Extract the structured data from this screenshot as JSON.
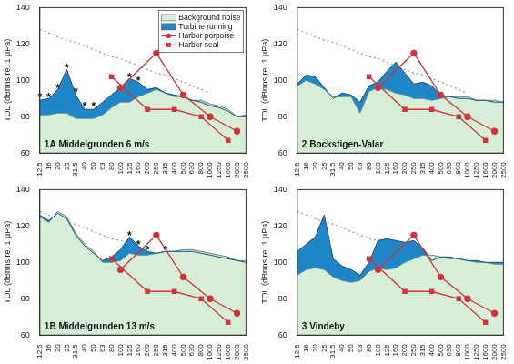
{
  "chart_data": [
    {
      "type": "line",
      "title": "1A Middelgrunden 6 m/s",
      "y_label": "TOL (dBrms re. 1 µPa)",
      "categories": [
        "12.5",
        "16",
        "20",
        "25",
        "31.5",
        "40",
        "50",
        "63",
        "80",
        "100",
        "125",
        "160",
        "200",
        "250",
        "315",
        "400",
        "500",
        "630",
        "800",
        "1000",
        "1250",
        "1600",
        "2000",
        "2500"
      ],
      "ylim": [
        60,
        140
      ],
      "yticks": [
        60,
        80,
        100,
        120,
        140
      ],
      "grid": false,
      "legend": "upper right",
      "series": [
        {
          "name": "Background noise",
          "type": "area",
          "color": "#d7eed6",
          "values": [
            81,
            81,
            82,
            82,
            79,
            79,
            79,
            81,
            85,
            88,
            88,
            91,
            93,
            95,
            93,
            91,
            91,
            89,
            89,
            87,
            86,
            84,
            80,
            81
          ]
        },
        {
          "name": "Turbine running",
          "type": "area",
          "color": "#1f87c8",
          "values": [
            89,
            90,
            95,
            106,
            92,
            84,
            84,
            88,
            92,
            96,
            101,
            99,
            95,
            96,
            93,
            92,
            91,
            89,
            88,
            86,
            85,
            83,
            80,
            80
          ]
        },
        {
          "type": "line",
          "color": "#999999",
          "line_style": "dotted",
          "values": [
            128,
            126,
            124,
            122,
            121,
            119,
            117,
            115,
            113,
            112,
            110,
            108,
            106,
            104,
            103,
            101,
            99,
            97,
            95,
            93,
            null,
            null,
            null,
            null
          ]
        },
        {
          "name": "Harbor porpoise",
          "type": "line",
          "color": "#d2333b",
          "marker": "circle",
          "values": [
            null,
            null,
            null,
            null,
            null,
            null,
            null,
            null,
            null,
            96,
            null,
            null,
            null,
            115,
            null,
            null,
            92,
            null,
            null,
            80,
            null,
            null,
            72,
            null
          ]
        },
        {
          "name": "Harbor seal",
          "type": "line",
          "color": "#d2333b",
          "marker": "square",
          "values": [
            null,
            null,
            null,
            null,
            null,
            null,
            null,
            null,
            102,
            null,
            null,
            null,
            84,
            null,
            null,
            84,
            null,
            null,
            80,
            null,
            null,
            67,
            null,
            null
          ]
        }
      ],
      "annotations": [
        {
          "category": "12.5",
          "y": 92,
          "text": "*"
        },
        {
          "category": "16",
          "y": 92,
          "text": "*"
        },
        {
          "category": "20",
          "y": 97,
          "text": "*"
        },
        {
          "category": "25",
          "y": 108,
          "text": "*"
        },
        {
          "category": "31.5",
          "y": 95,
          "text": "*"
        },
        {
          "category": "40",
          "y": 87,
          "text": "*"
        },
        {
          "category": "50",
          "y": 87,
          "text": "*"
        },
        {
          "category": "125",
          "y": 103,
          "text": "*"
        },
        {
          "category": "160",
          "y": 101,
          "text": "*"
        }
      ]
    },
    {
      "type": "line",
      "title": "2 Bockstigen-Valar",
      "y_label": "TOL (dBrms re. 1 µPa)",
      "categories": [
        "12.5",
        "16",
        "20",
        "25",
        "31.5",
        "40",
        "50",
        "63",
        "80",
        "100",
        "125",
        "160",
        "200",
        "250",
        "315",
        "400",
        "500",
        "630",
        "800",
        "1000",
        "1250",
        "1600",
        "2000",
        "2500"
      ],
      "ylim": [
        60,
        140
      ],
      "yticks": [
        60,
        80,
        100,
        120,
        140
      ],
      "grid": false,
      "legend": false,
      "series": [
        {
          "name": "Background noise",
          "type": "area",
          "color": "#d7eed6",
          "values": [
            97,
            100,
            98,
            95,
            91,
            91,
            91,
            82,
            94,
            96,
            95,
            93,
            92,
            90,
            90,
            89,
            90,
            91,
            91,
            91,
            89,
            89,
            89,
            88
          ]
        },
        {
          "name": "Turbine running",
          "type": "area",
          "color": "#1f87c8",
          "values": [
            98,
            103,
            102,
            96,
            90,
            93,
            92,
            88,
            97,
            99,
            105,
            110,
            104,
            98,
            99,
            97,
            92,
            91,
            90,
            90,
            89,
            89,
            88,
            88
          ]
        },
        {
          "type": "line",
          "color": "#999999",
          "line_style": "dotted",
          "values": [
            128,
            126,
            124,
            122,
            121,
            119,
            117,
            115,
            113,
            112,
            110,
            108,
            106,
            104,
            103,
            101,
            99,
            97,
            95,
            93,
            null,
            null,
            null,
            null
          ]
        },
        {
          "name": "Harbor porpoise",
          "type": "line",
          "color": "#d2333b",
          "marker": "circle",
          "values": [
            null,
            null,
            null,
            null,
            null,
            null,
            null,
            null,
            null,
            96,
            null,
            null,
            null,
            115,
            null,
            null,
            92,
            null,
            null,
            80,
            null,
            null,
            72,
            null
          ]
        },
        {
          "name": "Harbor seal",
          "type": "line",
          "color": "#d2333b",
          "marker": "square",
          "values": [
            null,
            null,
            null,
            null,
            null,
            null,
            null,
            null,
            102,
            null,
            null,
            null,
            84,
            null,
            null,
            84,
            null,
            null,
            80,
            null,
            null,
            67,
            null,
            null
          ]
        }
      ],
      "annotations": []
    },
    {
      "type": "line",
      "title": "1B Middelgrunden 13 m/s",
      "y_label": "TOL (dBrms re. 1 µPa)",
      "categories": [
        "12.5",
        "16",
        "20",
        "25",
        "31.5",
        "40",
        "50",
        "63",
        "80",
        "100",
        "125",
        "160",
        "200",
        "250",
        "315",
        "400",
        "500",
        "630",
        "800",
        "1000",
        "1250",
        "1600",
        "2000",
        "2500"
      ],
      "ylim": [
        60,
        140
      ],
      "yticks": [
        60,
        80,
        100,
        120,
        140
      ],
      "grid": false,
      "legend": false,
      "series": [
        {
          "name": "Background noise",
          "type": "area",
          "color": "#d7eed6",
          "values": [
            125,
            122,
            128,
            125,
            116,
            110,
            106,
            100,
            100,
            101,
            105,
            104,
            104,
            105,
            106,
            106,
            107,
            107,
            106,
            105,
            104,
            103,
            101,
            101
          ]
        },
        {
          "name": "Turbine running",
          "type": "area",
          "color": "#1f87c8",
          "values": [
            126,
            123,
            127,
            124,
            115,
            109,
            105,
            101,
            103,
            107,
            114,
            109,
            106,
            105,
            106,
            106,
            106,
            106,
            105,
            104,
            103,
            102,
            101,
            100
          ]
        },
        {
          "type": "line",
          "color": "#999999",
          "line_style": "dotted",
          "values": [
            128,
            126,
            124,
            122,
            121,
            119,
            117,
            115,
            113,
            112,
            110,
            108,
            106,
            104,
            103,
            101,
            99,
            97,
            95,
            93,
            null,
            null,
            null,
            null
          ]
        },
        {
          "name": "Harbor porpoise",
          "type": "line",
          "color": "#d2333b",
          "marker": "circle",
          "values": [
            null,
            null,
            null,
            null,
            null,
            null,
            null,
            null,
            null,
            96,
            null,
            null,
            null,
            115,
            null,
            null,
            92,
            null,
            null,
            80,
            null,
            null,
            72,
            null
          ]
        },
        {
          "name": "Harbor seal",
          "type": "line",
          "color": "#d2333b",
          "marker": "square",
          "values": [
            null,
            null,
            null,
            null,
            null,
            null,
            null,
            null,
            102,
            null,
            null,
            null,
            84,
            null,
            null,
            84,
            null,
            null,
            80,
            null,
            null,
            67,
            null,
            null
          ]
        }
      ],
      "annotations": [
        {
          "category": "125",
          "y": 116,
          "text": "*"
        },
        {
          "category": "160",
          "y": 111,
          "text": "*"
        },
        {
          "category": "200",
          "y": 108,
          "text": "*"
        },
        {
          "category": "315",
          "y": 108,
          "text": "*"
        }
      ]
    },
    {
      "type": "line",
      "title": "3 Vindeby",
      "y_label": "TOL (dBrms re. 1 µPa)",
      "categories": [
        "12.5",
        "16",
        "20",
        "25",
        "31.5",
        "40",
        "50",
        "63",
        "80",
        "100",
        "125",
        "160",
        "200",
        "250",
        "315",
        "400",
        "500",
        "630",
        "800",
        "1000",
        "1250",
        "1600",
        "2000",
        "2500"
      ],
      "ylim": [
        60,
        140
      ],
      "yticks": [
        60,
        80,
        100,
        120,
        140
      ],
      "grid": false,
      "legend": false,
      "series": [
        {
          "name": "Background noise",
          "type": "area",
          "color": "#d7eed6",
          "values": [
            93,
            96,
            97,
            96,
            92,
            90,
            89,
            90,
            95,
            97,
            96,
            97,
            100,
            102,
            104,
            104,
            103,
            102,
            102,
            101,
            100,
            100,
            99,
            99
          ]
        },
        {
          "name": "Turbine running",
          "type": "area",
          "color": "#1f87c8",
          "values": [
            106,
            110,
            114,
            126,
            102,
            98,
            96,
            93,
            100,
            112,
            113,
            112,
            111,
            112,
            108,
            101,
            103,
            103,
            102,
            101,
            101,
            100,
            100,
            100
          ]
        },
        {
          "type": "line",
          "color": "#999999",
          "line_style": "dotted",
          "values": [
            128,
            126,
            124,
            122,
            121,
            119,
            117,
            115,
            113,
            112,
            110,
            108,
            106,
            104,
            103,
            101,
            99,
            97,
            95,
            93,
            null,
            null,
            null,
            null
          ]
        },
        {
          "name": "Harbor porpoise",
          "type": "line",
          "color": "#d2333b",
          "marker": "circle",
          "values": [
            null,
            null,
            null,
            null,
            null,
            null,
            null,
            null,
            null,
            96,
            null,
            null,
            null,
            115,
            null,
            null,
            92,
            null,
            null,
            80,
            null,
            null,
            72,
            null
          ]
        },
        {
          "name": "Harbor seal",
          "type": "line",
          "color": "#d2333b",
          "marker": "square",
          "values": [
            null,
            null,
            null,
            null,
            null,
            null,
            null,
            null,
            102,
            null,
            null,
            null,
            84,
            null,
            null,
            84,
            null,
            null,
            80,
            null,
            null,
            67,
            null,
            null
          ]
        }
      ],
      "annotations": []
    }
  ]
}
